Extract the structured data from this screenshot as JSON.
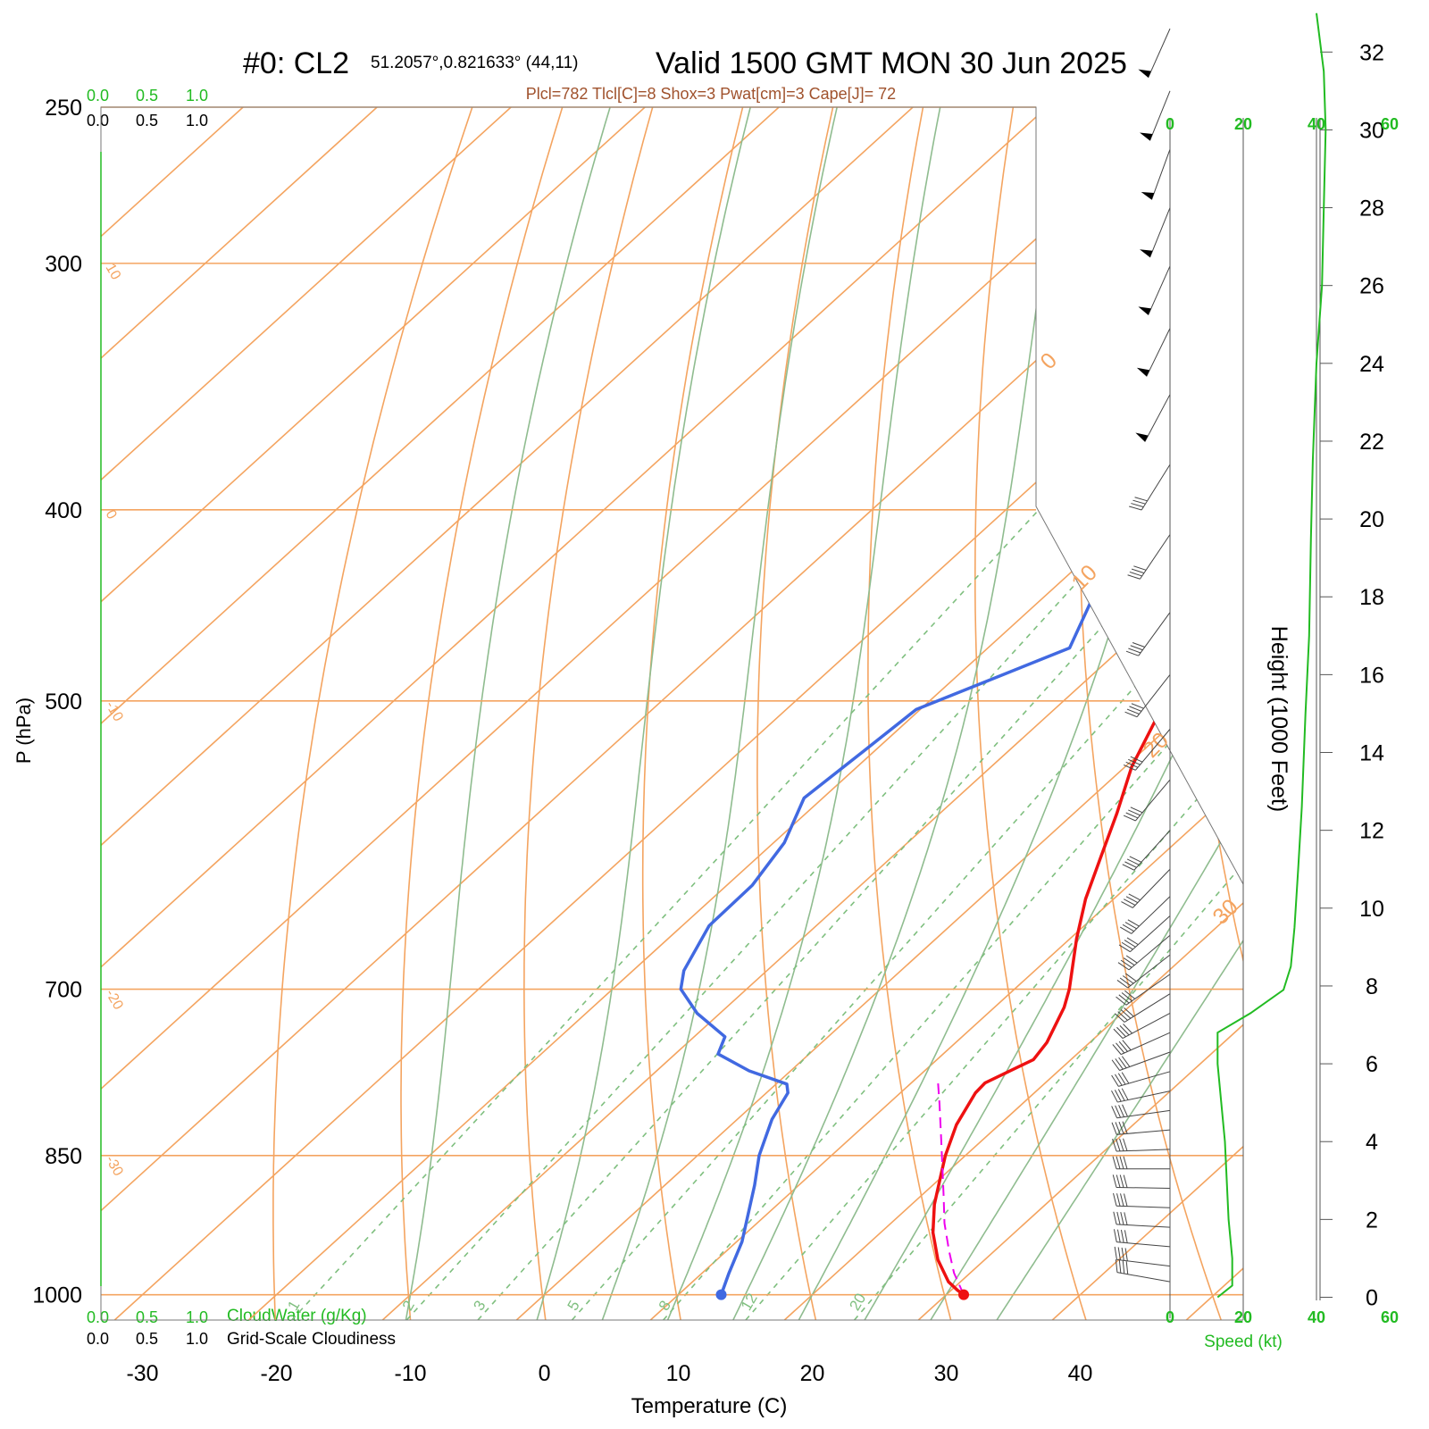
{
  "header": {
    "run_label": "#0: CL2",
    "location": "51.2057°,0.821633° (44,11)",
    "valid": "Valid 1500 GMT MON 30 Jun 2025",
    "indices": "Plcl=782 Tlcl[C]=8 Shox=3 Pwat[cm]=3 Cape[J]= 72"
  },
  "panels": {
    "cloud_top_green": [
      "0.0",
      "0.5",
      "1.0"
    ],
    "cloud_top_black": [
      "0.0",
      "0.5",
      "1.0"
    ],
    "cloud_bottom_green": [
      "0.0",
      "0.5",
      "1.0"
    ],
    "cloud_bottom_black": [
      "0.0",
      "0.5",
      "1.0"
    ],
    "cloudwater_label": "CloudWater (g/Kg)",
    "cloudiness_label": "Grid-Scale Cloudiness",
    "speed_ticks": [
      "0",
      "20",
      "40",
      "60"
    ],
    "speed_label": "Speed (kt)"
  },
  "chart_data": {
    "type": "line",
    "diagram": "skew-T log-p",
    "xlabel": "Temperature (C)",
    "ylabel": "P (hPa)",
    "y2label": "Height (1000 Feet)",
    "x_ticks": [
      -30,
      -20,
      -10,
      0,
      10,
      20,
      30,
      40
    ],
    "x_range_at_1000hPa": [
      -33.5,
      36
    ],
    "p_ticks": [
      250,
      300,
      400,
      500,
      700,
      850,
      1000
    ],
    "p_range": [
      250,
      1030
    ],
    "height_ticks_kft": [
      0,
      2,
      4,
      6,
      8,
      10,
      12,
      14,
      16,
      18,
      20,
      22,
      24,
      26,
      28,
      30,
      32
    ],
    "isotherm_labels": [
      {
        "value": "10",
        "p": 300
      },
      {
        "value": "0",
        "p": 400
      },
      {
        "value": "-10",
        "p": 500
      },
      {
        "value": "-20",
        "p": 700
      },
      {
        "value": "-30",
        "p": 850
      }
    ],
    "dry_adiabat_labels": [
      "0",
      "10",
      "20",
      "30"
    ],
    "mixing_ratio_labels": [
      "1",
      "2",
      "3",
      "5",
      "8",
      "12",
      "20"
    ],
    "mixing_ratios_gkg": [
      1,
      2,
      3,
      5,
      8,
      12,
      20
    ],
    "dry_adiabats_thetaK": [
      253,
      263,
      273,
      283,
      293,
      303,
      313,
      323,
      333,
      343,
      353,
      363,
      373,
      383,
      393
    ],
    "moist_adiabats_thetaC": [
      -10,
      0,
      5,
      10,
      15,
      20,
      25,
      30,
      35
    ],
    "colors": {
      "temperature": "#ee1111",
      "dewpoint": "#4169e1",
      "parcel": "#ee00ee",
      "isopleth": "#f4a460",
      "moist_adiabat": "#8fbc8f",
      "mixing_ratio": "#7fbf7f",
      "speed": "#22bb22",
      "label_index": "#a0522d"
    },
    "series": [
      {
        "role": "temperature",
        "points": [
          [
            1000,
            31.3
          ],
          [
            995,
            30.5
          ],
          [
            985,
            29.1
          ],
          [
            960,
            26.5
          ],
          [
            930,
            23.9
          ],
          [
            900,
            21.7
          ],
          [
            870,
            19.8
          ],
          [
            850,
            18.5
          ],
          [
            820,
            16.8
          ],
          [
            790,
            15.6
          ],
          [
            781,
            15.5
          ],
          [
            760,
            17.2
          ],
          [
            745,
            16.8
          ],
          [
            715,
            15.2
          ],
          [
            700,
            14.1
          ],
          [
            660,
            10.5
          ],
          [
            630,
            7.9
          ],
          [
            600,
            5.6
          ],
          [
            570,
            3.2
          ],
          [
            540,
            0.5
          ],
          [
            500,
            -2.4
          ],
          [
            460,
            -6.4
          ],
          [
            440,
            -8.4
          ],
          [
            400,
            -12.8
          ],
          [
            370,
            -17.5
          ],
          [
            340,
            -22.4
          ],
          [
            300,
            -30.8
          ],
          [
            280,
            -34.8
          ],
          [
            265,
            -38.6
          ]
        ]
      },
      {
        "role": "dewpoint",
        "points": [
          [
            1000,
            13.2
          ],
          [
            975,
            12.0
          ],
          [
            940,
            10.4
          ],
          [
            880,
            6.7
          ],
          [
            850,
            4.6
          ],
          [
            815,
            2.6
          ],
          [
            790,
            1.6
          ],
          [
            782,
            0.8
          ],
          [
            770,
            -3.1
          ],
          [
            755,
            -6.8
          ],
          [
            740,
            -7.7
          ],
          [
            720,
            -11.7
          ],
          [
            700,
            -14.9
          ],
          [
            685,
            -16.2
          ],
          [
            650,
            -18.0
          ],
          [
            620,
            -18.1
          ],
          [
            590,
            -19.2
          ],
          [
            560,
            -21.4
          ],
          [
            530,
            -20.8
          ],
          [
            505,
            -20.3
          ],
          [
            470,
            -13.9
          ],
          [
            440,
            -16.6
          ],
          [
            400,
            -22.2
          ],
          [
            370,
            -27.4
          ],
          [
            340,
            -31.9
          ],
          [
            300,
            -37.8
          ],
          [
            285,
            -40.4
          ],
          [
            265,
            -45.8
          ]
        ]
      },
      {
        "role": "parcel",
        "points": [
          [
            1000,
            31.3
          ],
          [
            975,
            28.8
          ],
          [
            950,
            26.6
          ],
          [
            920,
            24.0
          ],
          [
            890,
            21.6
          ],
          [
            860,
            19.1
          ],
          [
            830,
            16.5
          ],
          [
            800,
            13.8
          ],
          [
            781,
            12.0
          ]
        ]
      }
    ],
    "parcel_start": {
      "p": 1000,
      "t": 31.3
    },
    "dewpoint_start": {
      "p": 1000,
      "t": 13.2
    },
    "wind_speed_profile": [
      [
        0,
        13
      ],
      [
        0.3,
        17
      ],
      [
        1,
        17
      ],
      [
        2,
        16
      ],
      [
        4,
        15
      ],
      [
        6,
        13
      ],
      [
        6.8,
        13
      ],
      [
        7.3,
        22
      ],
      [
        7.9,
        31
      ],
      [
        8.5,
        33
      ],
      [
        9.5,
        34
      ],
      [
        11,
        35
      ],
      [
        12.6,
        36
      ],
      [
        15,
        37
      ],
      [
        17,
        38
      ],
      [
        19.5,
        38.5
      ],
      [
        21.5,
        39
      ],
      [
        24,
        40
      ],
      [
        26,
        41.5
      ],
      [
        28,
        42
      ],
      [
        30,
        42.5
      ],
      [
        31.5,
        42
      ],
      [
        33,
        40
      ]
    ],
    "wind_barbs": [
      {
        "h": 0.4,
        "spd": 40,
        "dir": 100
      },
      {
        "h": 0.8,
        "spd": 40,
        "dir": 97
      },
      {
        "h": 1.3,
        "spd": 40,
        "dir": 95
      },
      {
        "h": 1.8,
        "spd": 40,
        "dir": 93
      },
      {
        "h": 2.3,
        "spd": 40,
        "dir": 92
      },
      {
        "h": 2.8,
        "spd": 40,
        "dir": 91
      },
      {
        "h": 3.3,
        "spd": 40,
        "dir": 90
      },
      {
        "h": 3.8,
        "spd": 40,
        "dir": 88
      },
      {
        "h": 4.3,
        "spd": 40,
        "dir": 85
      },
      {
        "h": 4.8,
        "spd": 40,
        "dir": 82
      },
      {
        "h": 5.3,
        "spd": 40,
        "dir": 78
      },
      {
        "h": 5.8,
        "spd": 40,
        "dir": 74
      },
      {
        "h": 6.3,
        "spd": 40,
        "dir": 70
      },
      {
        "h": 6.8,
        "spd": 40,
        "dir": 66
      },
      {
        "h": 7.3,
        "spd": 40,
        "dir": 62
      },
      {
        "h": 7.8,
        "spd": 40,
        "dir": 58
      },
      {
        "h": 8.3,
        "spd": 40,
        "dir": 55
      },
      {
        "h": 8.8,
        "spd": 40,
        "dir": 52
      },
      {
        "h": 9.3,
        "spd": 40,
        "dir": 50
      },
      {
        "h": 9.8,
        "spd": 40,
        "dir": 48
      },
      {
        "h": 10.3,
        "spd": 40,
        "dir": 46
      },
      {
        "h": 11.0,
        "spd": 40,
        "dir": 44
      },
      {
        "h": 12.0,
        "spd": 40,
        "dir": 42
      },
      {
        "h": 13.3,
        "spd": 40,
        "dir": 40
      },
      {
        "h": 14.6,
        "spd": 40,
        "dir": 40
      },
      {
        "h": 16.0,
        "spd": 40,
        "dir": 38
      },
      {
        "h": 17.6,
        "spd": 40,
        "dir": 36
      },
      {
        "h": 19.6,
        "spd": 40,
        "dir": 34
      },
      {
        "h": 21.4,
        "spd": 40,
        "dir": 32
      },
      {
        "h": 23.2,
        "spd": 50,
        "dir": 28
      },
      {
        "h": 24.9,
        "spd": 50,
        "dir": 26
      },
      {
        "h": 26.5,
        "spd": 50,
        "dir": 24
      },
      {
        "h": 28.0,
        "spd": 50,
        "dir": 22
      },
      {
        "h": 29.5,
        "spd": 50,
        "dir": 20
      },
      {
        "h": 31.0,
        "spd": 50,
        "dir": 22
      },
      {
        "h": 32.6,
        "spd": 50,
        "dir": 24
      }
    ]
  }
}
